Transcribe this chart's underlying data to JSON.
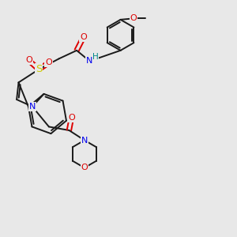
{
  "bg_color": "#e8e8e8",
  "bond_color": "#1a1a1a",
  "bond_width": 1.4,
  "atom_colors": {
    "N": "#0000ee",
    "O": "#dd0000",
    "S": "#cccc00",
    "H": "#008888",
    "C": "#1a1a1a"
  },
  "font_size": 7.5,
  "fig_size": [
    3.0,
    3.0
  ],
  "dpi": 100,
  "xlim": [
    0.0,
    10.0
  ],
  "ylim": [
    0.0,
    10.0
  ]
}
